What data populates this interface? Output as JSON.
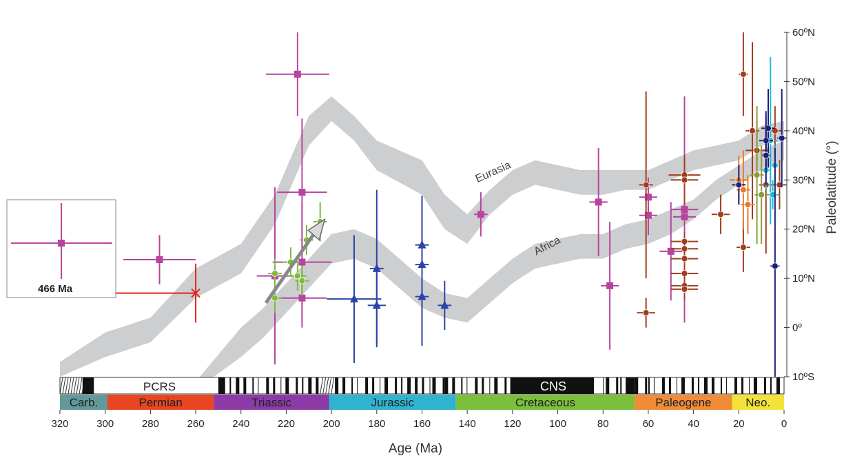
{
  "chart_data": {
    "type": "scatter",
    "title": "",
    "xlabel": "Age (Ma)",
    "ylabel": "Paleolatitude (°)",
    "xlim": [
      320,
      0
    ],
    "ylim": [
      -10,
      60
    ],
    "x_ticks": [
      {
        "v": 320,
        "label": "320"
      },
      {
        "v": 300,
        "label": "300"
      },
      {
        "v": 280,
        "label": "280"
      },
      {
        "v": 260,
        "label": "260"
      },
      {
        "v": 240,
        "label": "240"
      },
      {
        "v": 220,
        "label": "220"
      },
      {
        "v": 200,
        "label": "200"
      },
      {
        "v": 180,
        "label": "180"
      },
      {
        "v": 160,
        "label": "160"
      },
      {
        "v": 140,
        "label": "140"
      },
      {
        "v": 120,
        "label": "120"
      },
      {
        "v": 100,
        "label": "100"
      },
      {
        "v": 80,
        "label": "80"
      },
      {
        "v": 60,
        "label": "60"
      },
      {
        "v": 40,
        "label": "40"
      },
      {
        "v": 20,
        "label": "20"
      },
      {
        "v": 0,
        "label": "0"
      }
    ],
    "y_ticks": [
      {
        "v": 60,
        "label": "60ºN"
      },
      {
        "v": 50,
        "label": "50ºN"
      },
      {
        "v": 40,
        "label": "40ºN"
      },
      {
        "v": 30,
        "label": "30ºN"
      },
      {
        "v": 20,
        "label": "20ºN"
      },
      {
        "v": 10,
        "label": "10ºN"
      },
      {
        "v": 0,
        "label": "0º"
      },
      {
        "v": -10,
        "label": "10ºS"
      }
    ],
    "bands": [
      {
        "name": "Eurasia",
        "label": "Eurasia",
        "color": "#c8c9cb",
        "upper": [
          [
            320,
            -7
          ],
          [
            300,
            -1
          ],
          [
            280,
            2
          ],
          [
            260,
            12
          ],
          [
            240,
            17
          ],
          [
            225,
            27
          ],
          [
            210,
            43
          ],
          [
            200,
            47
          ],
          [
            190,
            43
          ],
          [
            180,
            38
          ],
          [
            160,
            34
          ],
          [
            150,
            27
          ],
          [
            140,
            23
          ],
          [
            130,
            28
          ],
          [
            120,
            32
          ],
          [
            110,
            34
          ],
          [
            100,
            33
          ],
          [
            90,
            32
          ],
          [
            80,
            32
          ],
          [
            70,
            32
          ],
          [
            60,
            32
          ],
          [
            50,
            34
          ],
          [
            40,
            36
          ],
          [
            30,
            37
          ],
          [
            20,
            38
          ],
          [
            10,
            41
          ],
          [
            0,
            42
          ]
        ],
        "lower": [
          [
            320,
            -10
          ],
          [
            300,
            -6
          ],
          [
            280,
            -3
          ],
          [
            260,
            6
          ],
          [
            240,
            11
          ],
          [
            225,
            21
          ],
          [
            210,
            37
          ],
          [
            200,
            42
          ],
          [
            190,
            38
          ],
          [
            180,
            32
          ],
          [
            160,
            27
          ],
          [
            150,
            20
          ],
          [
            140,
            17
          ],
          [
            130,
            23
          ],
          [
            120,
            27
          ],
          [
            110,
            29
          ],
          [
            100,
            28
          ],
          [
            90,
            27
          ],
          [
            80,
            27
          ],
          [
            70,
            28
          ],
          [
            60,
            28
          ],
          [
            50,
            30
          ],
          [
            40,
            32
          ],
          [
            30,
            33
          ],
          [
            20,
            34
          ],
          [
            10,
            37
          ],
          [
            0,
            38
          ]
        ]
      },
      {
        "name": "Africa",
        "label": "Africa",
        "color": "#c8c9cb",
        "upper": [
          [
            260,
            -11
          ],
          [
            240,
            0
          ],
          [
            230,
            4
          ],
          [
            220,
            9
          ],
          [
            210,
            14
          ],
          [
            200,
            19
          ],
          [
            190,
            20
          ],
          [
            180,
            18
          ],
          [
            170,
            14
          ],
          [
            160,
            10
          ],
          [
            150,
            7
          ],
          [
            140,
            6
          ],
          [
            130,
            10
          ],
          [
            120,
            14
          ],
          [
            110,
            17
          ],
          [
            100,
            18
          ],
          [
            90,
            19
          ],
          [
            80,
            19
          ],
          [
            70,
            21
          ],
          [
            60,
            22
          ],
          [
            50,
            24
          ],
          [
            40,
            26
          ],
          [
            30,
            30
          ],
          [
            20,
            33
          ],
          [
            10,
            36
          ],
          [
            0,
            38
          ]
        ],
        "lower": [
          [
            255,
            -11
          ],
          [
            240,
            -6
          ],
          [
            230,
            -2
          ],
          [
            220,
            3
          ],
          [
            210,
            8
          ],
          [
            200,
            13
          ],
          [
            190,
            14
          ],
          [
            180,
            12
          ],
          [
            170,
            8
          ],
          [
            160,
            4
          ],
          [
            150,
            2
          ],
          [
            140,
            1
          ],
          [
            130,
            5
          ],
          [
            120,
            9
          ],
          [
            110,
            12
          ],
          [
            100,
            13
          ],
          [
            90,
            14
          ],
          [
            80,
            14
          ],
          [
            70,
            16
          ],
          [
            60,
            17
          ],
          [
            50,
            19
          ],
          [
            40,
            22
          ],
          [
            30,
            26
          ],
          [
            20,
            29
          ],
          [
            10,
            32
          ],
          [
            0,
            34
          ]
        ]
      }
    ],
    "series": [
      {
        "color": "#b8449f",
        "marker": "square",
        "points": [
          [
            215,
            51.5,
            14,
            8.5
          ],
          [
            276,
            13.8,
            16,
            5
          ],
          [
            225,
            10.5,
            8,
            18
          ],
          [
            213,
            27.5,
            11,
            15
          ],
          [
            213,
            13.3,
            13,
            12
          ],
          [
            213,
            6,
            11,
            6
          ],
          [
            134,
            23,
            3,
            4.5
          ],
          [
            82,
            25.5,
            4,
            11
          ],
          [
            77,
            8.5,
            4,
            13
          ],
          [
            60,
            26.5,
            4,
            4
          ],
          [
            60,
            22.8,
            4,
            4
          ],
          [
            50,
            15.5,
            5,
            10
          ],
          [
            44,
            24,
            6,
            23
          ],
          [
            44,
            22.5,
            5,
            5
          ]
        ]
      },
      {
        "color": "#7cbb3c",
        "marker": "circle",
        "points": [
          [
            218,
            13.3,
            4,
            3
          ],
          [
            225,
            11,
            3,
            3
          ],
          [
            215,
            10.5,
            4,
            3
          ],
          [
            213,
            9.5,
            3,
            3
          ],
          [
            225,
            6,
            3,
            3
          ],
          [
            211,
            17.8,
            3,
            3
          ],
          [
            205,
            21.5,
            3,
            4
          ]
        ]
      },
      {
        "color": "#2b45a6",
        "marker": "triangle",
        "points": [
          [
            190,
            5.8,
            12,
            13
          ],
          [
            180,
            12,
            3,
            16
          ],
          [
            180,
            4.5,
            4,
            8
          ],
          [
            160,
            16.8,
            3,
            9
          ],
          [
            160,
            12.8,
            3,
            14
          ],
          [
            160,
            6.3,
            3,
            10
          ],
          [
            150,
            4.5,
            3,
            5
          ]
        ]
      },
      {
        "color": "#a13d1d",
        "marker": "circle",
        "points": [
          [
            61,
            29,
            3,
            19
          ],
          [
            61,
            3,
            4,
            3
          ],
          [
            44,
            31,
            7,
            4
          ],
          [
            44,
            30,
            6,
            5
          ],
          [
            44,
            17.5,
            6,
            2
          ],
          [
            44,
            16,
            6,
            2
          ],
          [
            44,
            14,
            6,
            2
          ],
          [
            44,
            11,
            6,
            2
          ],
          [
            44,
            8.5,
            6,
            2
          ],
          [
            44,
            7.8,
            6,
            2
          ],
          [
            28,
            23,
            4,
            4
          ],
          [
            18,
            51.5,
            2,
            8.5
          ],
          [
            18,
            16.3,
            3,
            5
          ],
          [
            14,
            40,
            3,
            18
          ],
          [
            12,
            36,
            5,
            6
          ],
          [
            8,
            29,
            3,
            14
          ],
          [
            4,
            40,
            3,
            5
          ],
          [
            2,
            29,
            3,
            5
          ]
        ]
      },
      {
        "color": "#e87a2a",
        "marker": "circle",
        "points": [
          [
            18,
            28,
            3,
            8
          ],
          [
            16,
            25,
            3,
            6
          ],
          [
            20,
            30,
            4,
            5
          ]
        ]
      },
      {
        "color": "#26b6d1",
        "marker": "circle",
        "points": [
          [
            6,
            38,
            3,
            17
          ],
          [
            8,
            32,
            2,
            4
          ],
          [
            4,
            33,
            2,
            4
          ],
          [
            5,
            27,
            3,
            3
          ]
        ]
      },
      {
        "color": "#1e1f7a",
        "marker": "circle",
        "points": [
          [
            20,
            29,
            3,
            4
          ],
          [
            7,
            40.5,
            3,
            8
          ],
          [
            8,
            38,
            3,
            6
          ],
          [
            8,
            35,
            2,
            6
          ],
          [
            4,
            12.5,
            2,
            24
          ],
          [
            1,
            38.5,
            2,
            10
          ]
        ]
      },
      {
        "color": "#8a9a3a",
        "marker": "circle",
        "points": [
          [
            12,
            31,
            3,
            14
          ],
          [
            10,
            27,
            3,
            10
          ]
        ]
      }
    ],
    "special_points": [
      {
        "x": 260,
        "y": 7,
        "xerr_left": 93,
        "xerr_right": 0,
        "yerr": 6,
        "color": "#e2231a",
        "marker": "x",
        "label": "466 Ma"
      }
    ],
    "inset": {
      "x": 320,
      "y": 15.8,
      "color": "#b8449f",
      "marker": "square"
    },
    "trend_arrow": {
      "from": [
        229,
        5
      ],
      "to": [
        203,
        22
      ],
      "color": "#888888"
    },
    "polarity": {
      "labels": [
        {
          "label": "PCRS",
          "x": 276
        },
        {
          "label": "CNS",
          "x": 102
        }
      ],
      "pattern": [
        [
          320,
          310,
          "h"
        ],
        [
          310,
          305,
          "b"
        ],
        [
          305,
          262,
          "w"
        ],
        [
          262,
          250,
          "w"
        ],
        [
          250,
          247,
          "b"
        ],
        [
          247,
          245,
          "w"
        ],
        [
          245,
          205,
          "m"
        ],
        [
          205,
          200,
          "h"
        ],
        [
          200,
          160,
          "m"
        ],
        [
          160,
          150,
          "m"
        ],
        [
          150,
          121,
          "m"
        ],
        [
          121,
          84,
          "b"
        ],
        [
          84,
          80,
          "w"
        ],
        [
          80,
          70,
          "m"
        ],
        [
          70,
          66,
          "b"
        ],
        [
          66,
          60,
          "m"
        ],
        [
          60,
          0,
          "m"
        ]
      ]
    },
    "periods": [
      {
        "name": "Carb.",
        "start": 320,
        "end": 299,
        "color": "#619a99"
      },
      {
        "name": "Permian",
        "start": 299,
        "end": 252,
        "color": "#e84522"
      },
      {
        "name": "Triassic",
        "start": 252,
        "end": 201,
        "color": "#8b3aa6"
      },
      {
        "name": "Jurassic",
        "start": 201,
        "end": 145,
        "color": "#2fb3cf"
      },
      {
        "name": "Cretaceous",
        "start": 145,
        "end": 66,
        "color": "#7cbf3c"
      },
      {
        "name": "Paleogene",
        "start": 66,
        "end": 23,
        "color": "#f08c38"
      },
      {
        "name": "Neo.",
        "start": 23,
        "end": 0,
        "color": "#f3e23a"
      }
    ],
    "grid": false,
    "legend": "none"
  }
}
